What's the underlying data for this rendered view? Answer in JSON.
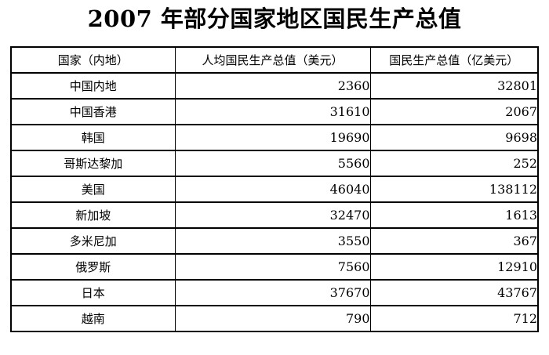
{
  "title": "2007 年部分国家地区国民生产总值",
  "table": {
    "columns": [
      "国家（内地）",
      "人均国民生产总值（美元）",
      "国民生产总值（亿美元）"
    ],
    "rows": [
      {
        "country": "中国内地",
        "per_capita": "2360",
        "total": "32801"
      },
      {
        "country": "中国香港",
        "per_capita": "31610",
        "total": "2067"
      },
      {
        "country": "韩国",
        "per_capita": "19690",
        "total": "9698"
      },
      {
        "country": "哥斯达黎加",
        "per_capita": "5560",
        "total": "252"
      },
      {
        "country": "美国",
        "per_capita": "46040",
        "total": "138112"
      },
      {
        "country": "新加坡",
        "per_capita": "32470",
        "total": "1613"
      },
      {
        "country": "多米尼加",
        "per_capita": "3550",
        "total": "367"
      },
      {
        "country": "俄罗斯",
        "per_capita": "7560",
        "total": "12910"
      },
      {
        "country": "日本",
        "per_capita": "37670",
        "total": "43767"
      },
      {
        "country": "越南",
        "per_capita": "790",
        "total": "712"
      }
    ]
  },
  "chart_data": {
    "type": "table",
    "title": "2007 年部分国家地区国民生产总值",
    "columns": [
      "国家（内地）",
      "人均国民生产总值（美元）",
      "国民生产总值（亿美元）"
    ],
    "categories": [
      "中国内地",
      "中国香港",
      "韩国",
      "哥斯达黎加",
      "美国",
      "新加坡",
      "多米尼加",
      "俄罗斯",
      "日本",
      "越南"
    ],
    "series": [
      {
        "name": "人均国民生产总值（美元）",
        "values": [
          2360,
          31610,
          19690,
          5560,
          46040,
          32470,
          3550,
          7560,
          37670,
          790
        ]
      },
      {
        "name": "国民生产总值（亿美元）",
        "values": [
          32801,
          2067,
          9698,
          252,
          138112,
          1613,
          367,
          12910,
          43767,
          712
        ]
      }
    ]
  },
  "colors": {
    "background": "#ffffff",
    "text": "#000000",
    "border": "#000000"
  }
}
